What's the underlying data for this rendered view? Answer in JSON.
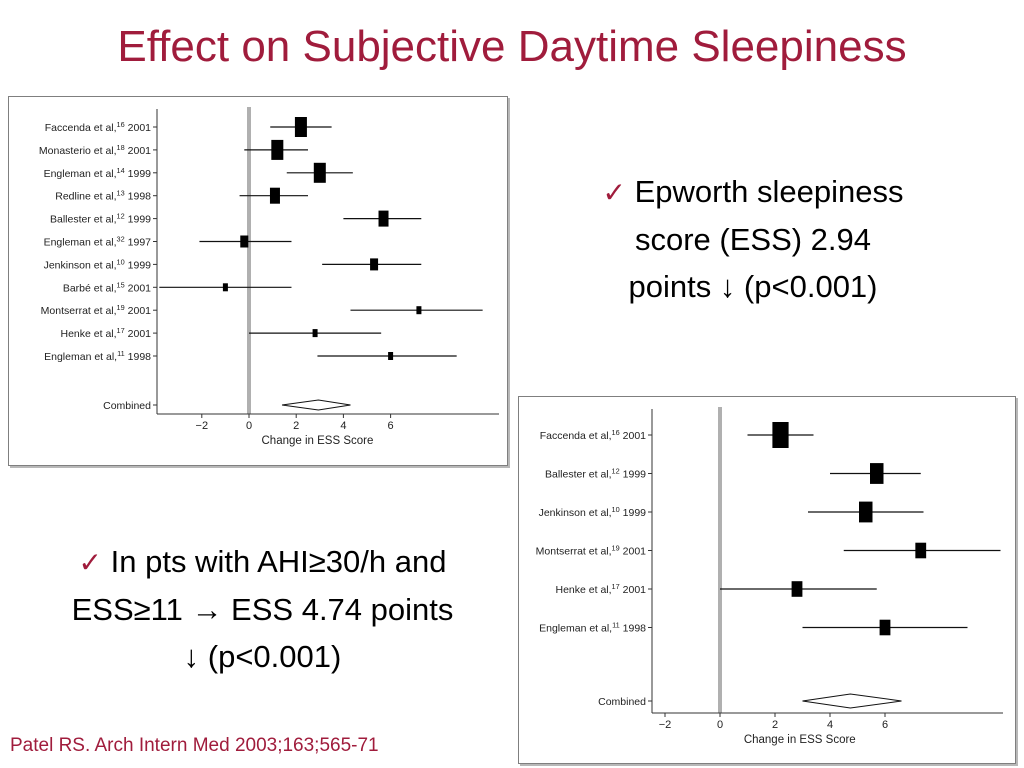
{
  "title": "Effect on Subjective Daytime Sleepiness",
  "bullets": [
    {
      "icon": "checkmark-icon",
      "check": "✓",
      "lines": [
        "Epworth sleepiness",
        "score (ESS) 2.94",
        "points ↓ (p<0.001)"
      ]
    },
    {
      "icon": "checkmark-icon",
      "check": "✓",
      "lines": [
        "In pts with AHI≥30/h and",
        "ESS≥11 → ESS 4.74 points",
        "↓ (p<0.001)"
      ]
    }
  ],
  "citation": "Patel RS. Arch Intern Med 2003;163;565-71",
  "colors": {
    "title": "#a01c3c",
    "reference_line": "#b0b0b0"
  },
  "chart_data": [
    {
      "type": "forest",
      "xlabel": "Change in ESS Score",
      "xticks": [
        -2,
        0,
        2,
        4,
        6
      ],
      "xlim": [
        -3.8,
        9.9
      ],
      "reference_line": 0,
      "studies": [
        {
          "author": "Faccenda et al,",
          "ref": "16",
          "year": "2001",
          "estimate": 2.2,
          "ci": [
            0.9,
            3.5
          ],
          "weight": "large"
        },
        {
          "author": "Monasterio et al,",
          "ref": "18",
          "year": "2001",
          "estimate": 1.2,
          "ci": [
            -0.2,
            2.5
          ],
          "weight": "large"
        },
        {
          "author": "Engleman et al,",
          "ref": "14",
          "year": "1999",
          "estimate": 3.0,
          "ci": [
            1.6,
            4.4
          ],
          "weight": "large"
        },
        {
          "author": "Redline et al,",
          "ref": "13",
          "year": "1998",
          "estimate": 1.1,
          "ci": [
            -0.4,
            2.5
          ],
          "weight": "medium"
        },
        {
          "author": "Ballester et al,",
          "ref": "12",
          "year": "1999",
          "estimate": 5.7,
          "ci": [
            4.0,
            7.3
          ],
          "weight": "medium"
        },
        {
          "author": "Engleman et al,",
          "ref": "32",
          "year": "1997",
          "estimate": -0.2,
          "ci": [
            -2.1,
            1.8
          ],
          "weight": "small"
        },
        {
          "author": "Jenkinson et al,",
          "ref": "10",
          "year": "1999",
          "estimate": 5.3,
          "ci": [
            3.1,
            7.3
          ],
          "weight": "small"
        },
        {
          "author": "Barbé et al,",
          "ref": "15",
          "year": "2001",
          "estimate": -1.0,
          "ci": [
            -3.8,
            1.8
          ],
          "weight": "tiny"
        },
        {
          "author": "Montserrat et al,",
          "ref": "19",
          "year": "2001",
          "estimate": 7.2,
          "ci": [
            4.3,
            9.9
          ],
          "weight": "tiny"
        },
        {
          "author": "Henke et al,",
          "ref": "17",
          "year": "2001",
          "estimate": 2.8,
          "ci": [
            0.0,
            5.6
          ],
          "weight": "tiny"
        },
        {
          "author": "Engleman et al,",
          "ref": "11",
          "year": "1998",
          "estimate": 6.0,
          "ci": [
            2.9,
            8.8
          ],
          "weight": "tiny"
        }
      ],
      "combined": {
        "label": "Combined",
        "estimate": 2.94,
        "ci": [
          1.4,
          4.3
        ]
      }
    },
    {
      "type": "forest",
      "xlabel": "Change in ESS Score",
      "xticks": [
        -2,
        0,
        2,
        4,
        6
      ],
      "xlim": [
        -2.5,
        10.2
      ],
      "reference_line": 0,
      "studies": [
        {
          "author": "Faccenda et al,",
          "ref": "16",
          "year": "2001",
          "estimate": 2.2,
          "ci": [
            1.0,
            3.4
          ],
          "weight": "large"
        },
        {
          "author": "Ballester et al,",
          "ref": "12",
          "year": "1999",
          "estimate": 5.7,
          "ci": [
            4.0,
            7.3
          ],
          "weight": "medium"
        },
        {
          "author": "Jenkinson et al,",
          "ref": "10",
          "year": "1999",
          "estimate": 5.3,
          "ci": [
            3.2,
            7.4
          ],
          "weight": "medium"
        },
        {
          "author": "Montserrat et al,",
          "ref": "19",
          "year": "2001",
          "estimate": 7.3,
          "ci": [
            4.5,
            10.2
          ],
          "weight": "small"
        },
        {
          "author": "Henke et al,",
          "ref": "17",
          "year": "2001",
          "estimate": 2.8,
          "ci": [
            0.0,
            5.7
          ],
          "weight": "small"
        },
        {
          "author": "Engleman et al,",
          "ref": "11",
          "year": "1998",
          "estimate": 6.0,
          "ci": [
            3.0,
            9.0
          ],
          "weight": "small"
        }
      ],
      "combined": {
        "label": "Combined",
        "estimate": 4.74,
        "ci": [
          3.0,
          6.6
        ]
      }
    }
  ]
}
